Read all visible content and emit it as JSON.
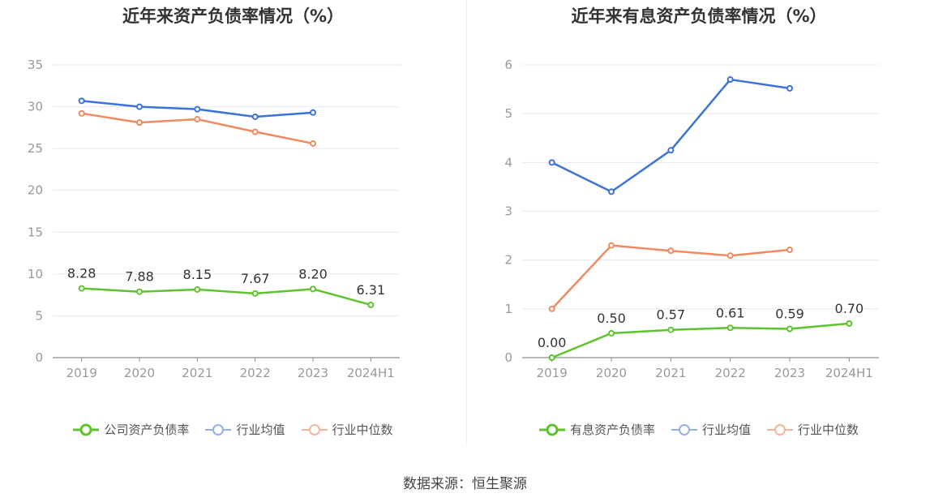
{
  "source": "数据来源：恒生聚源",
  "colors": {
    "company": "#5ec32d",
    "avg": "#3b73db",
    "median": "#f08a61",
    "axis": "#999999",
    "grid": "#e7e9f0",
    "label": "#333333"
  },
  "chart_data": [
    {
      "type": "line",
      "title": "近年来资产负债率情况（%）",
      "categories": [
        "2019",
        "2020",
        "2021",
        "2022",
        "2023",
        "2024H1"
      ],
      "ylim": [
        0,
        35
      ],
      "yticks": [
        "0",
        "5",
        "10",
        "15",
        "20",
        "25",
        "30",
        "35"
      ],
      "legend_position": "bottom",
      "grid": true,
      "series": [
        {
          "name": "公司资产负债率",
          "values": [
            8.28,
            7.88,
            8.15,
            7.67,
            8.2,
            6.31
          ],
          "labels": [
            "8.28",
            "7.88",
            "8.15",
            "7.67",
            "8.20",
            "6.31"
          ]
        },
        {
          "name": "行业均值",
          "values": [
            30.7,
            30.0,
            29.7,
            28.8,
            29.3,
            null
          ]
        },
        {
          "name": "行业中位数",
          "values": [
            29.2,
            28.1,
            28.5,
            27.0,
            25.6,
            null
          ]
        }
      ]
    },
    {
      "type": "line",
      "title": "近年来有息资产负债率情况（%）",
      "categories": [
        "2019",
        "2020",
        "2021",
        "2022",
        "2023",
        "2024H1"
      ],
      "ylim": [
        0,
        6
      ],
      "yticks": [
        "0",
        "1",
        "2",
        "3",
        "4",
        "5",
        "6"
      ],
      "legend_position": "bottom",
      "grid": true,
      "series": [
        {
          "name": "有息资产负债率",
          "values": [
            0.0,
            0.5,
            0.57,
            0.61,
            0.59,
            0.7
          ],
          "labels": [
            "0.00",
            "0.50",
            "0.57",
            "0.61",
            "0.59",
            "0.70"
          ]
        },
        {
          "name": "行业均值",
          "values": [
            4.0,
            3.4,
            4.25,
            5.7,
            5.52,
            null
          ]
        },
        {
          "name": "行业中位数",
          "values": [
            1.0,
            2.3,
            2.19,
            2.09,
            2.21,
            null
          ]
        }
      ]
    }
  ]
}
